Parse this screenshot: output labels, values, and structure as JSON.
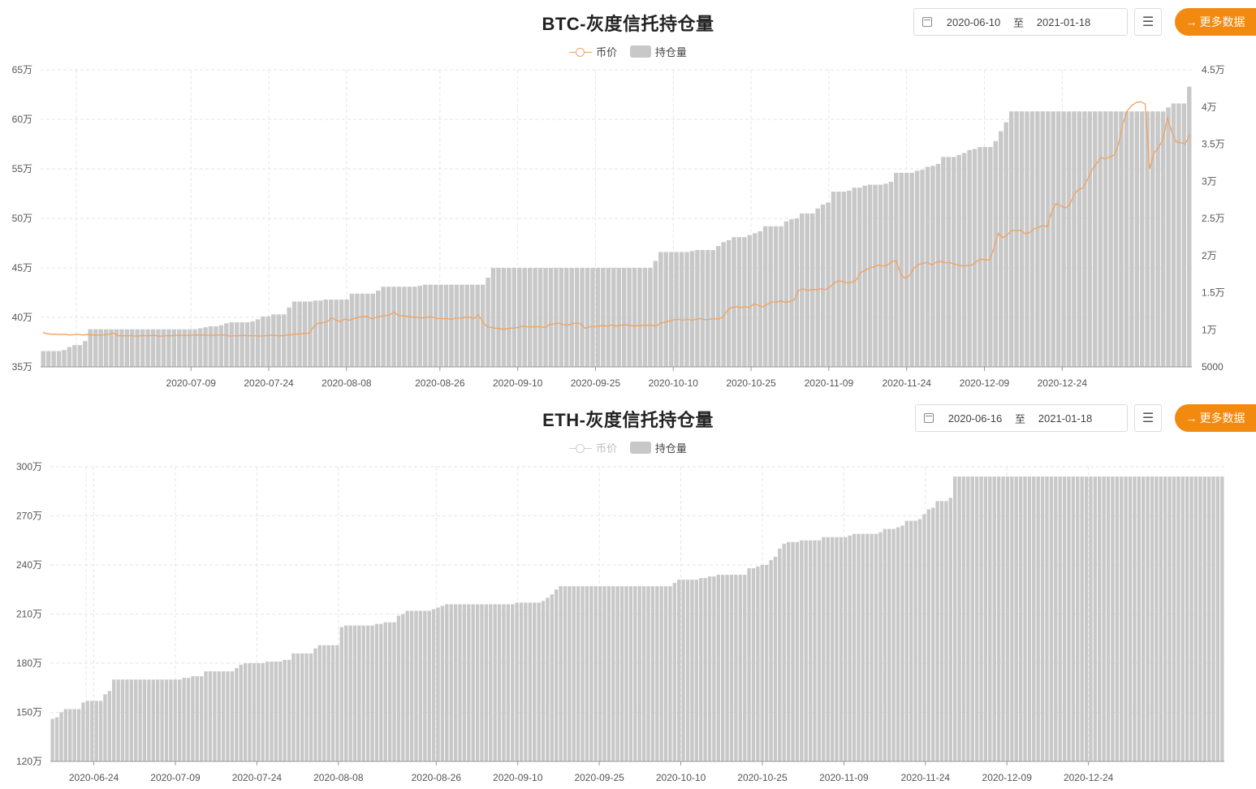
{
  "charts": [
    {
      "title": "BTC-灰度信托持仓量",
      "date_from": "2020-06-10",
      "date_sep": "至",
      "date_to": "2021-01-18",
      "menu_icon": "menu-icon",
      "more_label": "更多数据",
      "legend": [
        {
          "name": "币价",
          "active": true
        },
        {
          "name": "持仓量",
          "active": true
        }
      ]
    },
    {
      "title": "ETH-灰度信托持仓量",
      "date_from": "2020-06-16",
      "date_sep": "至",
      "date_to": "2021-01-18",
      "menu_icon": "menu-icon",
      "more_label": "更多数据",
      "legend": [
        {
          "name": "币价",
          "active": false
        },
        {
          "name": "持仓量",
          "active": true
        }
      ]
    }
  ],
  "colors": {
    "bar": "#c8c8c8",
    "price_line": "#f0a25e",
    "accent": "#f28a0f",
    "grid": "#e6e6e6"
  },
  "chart_data": [
    {
      "type": "bar",
      "x_start": "2020-06-10",
      "x_end": "2021-01-18",
      "xticks": [
        "2020-07-09",
        "2020-07-24",
        "2020-08-08",
        "2020-08-26",
        "2020-09-10",
        "2020-09-25",
        "2020-10-10",
        "2020-10-25",
        "2020-11-09",
        "2020-11-24",
        "2020-12-09",
        "2020-12-24"
      ],
      "y_left": {
        "min": 35,
        "max": 65,
        "step": 5,
        "unit": "万",
        "ticks": [
          "35万",
          "40万",
          "45万",
          "50万",
          "55万",
          "60万",
          "65万"
        ]
      },
      "y_right": {
        "min": 5000,
        "max": 45000,
        "ticks": [
          "5000",
          "1万",
          "1.5万",
          "2万",
          "2.5万",
          "3万",
          "3.5万",
          "4万",
          "4.5万"
        ]
      },
      "grid": true,
      "legend_position": "top-center",
      "series": [
        {
          "name": "持仓量",
          "type": "bar",
          "values": [
            36.6,
            36.6,
            36.6,
            36.6,
            36.7,
            37.0,
            37.2,
            37.2,
            37.6,
            38.8,
            38.8,
            38.8,
            38.8,
            38.8,
            38.8,
            38.8,
            38.8,
            38.8,
            38.8,
            38.8,
            38.8,
            38.8,
            38.8,
            38.8,
            38.8,
            38.8,
            38.8,
            38.8,
            38.8,
            38.8,
            38.9,
            39.0,
            39.1,
            39.1,
            39.2,
            39.4,
            39.5,
            39.5,
            39.5,
            39.5,
            39.6,
            39.8,
            40.1,
            40.1,
            40.3,
            40.3,
            40.3,
            41.0,
            41.6,
            41.6,
            41.6,
            41.6,
            41.7,
            41.7,
            41.8,
            41.8,
            41.8,
            41.8,
            41.8,
            42.4,
            42.4,
            42.4,
            42.4,
            42.4,
            42.7,
            43.1,
            43.1,
            43.1,
            43.1,
            43.1,
            43.1,
            43.1,
            43.2,
            43.3,
            43.3,
            43.3,
            43.3,
            43.3,
            43.3,
            43.3,
            43.3,
            43.3,
            43.3,
            43.3,
            43.3,
            44.0,
            45.0,
            45.0,
            45.0,
            45.0,
            45.0,
            45.0,
            45.0,
            45.0,
            45.0,
            45.0,
            45.0,
            45.0,
            45.0,
            45.0,
            45.0,
            45.0,
            45.0,
            45.0,
            45.0,
            45.0,
            45.0,
            45.0,
            45.0,
            45.0,
            45.0,
            45.0,
            45.0,
            45.0,
            45.0,
            45.0,
            45.0,
            45.7,
            46.6,
            46.6,
            46.6,
            46.6,
            46.6,
            46.6,
            46.7,
            46.8,
            46.8,
            46.8,
            46.8,
            47.2,
            47.6,
            47.8,
            48.1,
            48.1,
            48.1,
            48.3,
            48.5,
            48.7,
            49.2,
            49.2,
            49.2,
            49.2,
            49.7,
            49.9,
            50.0,
            50.5,
            50.5,
            50.5,
            51.0,
            51.4,
            51.6,
            52.7,
            52.7,
            52.7,
            52.8,
            53.1,
            53.1,
            53.3,
            53.4,
            53.4,
            53.4,
            53.5,
            53.7,
            54.6,
            54.6,
            54.6,
            54.6,
            54.8,
            54.9,
            55.2,
            55.3,
            55.5,
            56.2,
            56.2,
            56.2,
            56.4,
            56.6,
            56.9,
            57.0,
            57.2,
            57.2,
            57.2,
            57.8,
            58.8,
            59.7,
            60.8,
            60.8,
            60.8,
            60.8,
            60.8,
            60.8,
            60.8,
            60.8,
            60.8,
            60.8,
            60.8,
            60.8,
            60.8,
            60.8,
            60.8,
            60.8,
            60.8,
            60.8,
            60.8,
            60.8,
            60.8,
            60.8,
            60.8,
            60.8,
            60.8,
            60.8,
            60.8,
            60.8,
            60.8,
            60.8,
            61.2,
            61.6,
            61.6,
            61.6,
            63.3
          ]
        },
        {
          "name": "币价",
          "type": "line",
          "values": [
            9650,
            9450,
            9400,
            9400,
            9350,
            9400,
            9300,
            9350,
            9380,
            9300,
            9350,
            9300,
            9300,
            9250,
            9350,
            9420,
            9550,
            9200,
            9200,
            9200,
            9200,
            9150,
            9200,
            9200,
            9200,
            9250,
            9150,
            9150,
            9200,
            9200,
            9250,
            9250,
            9250,
            9250,
            9300,
            9300,
            9300,
            9250,
            9250,
            9300,
            9300,
            9300,
            9150,
            9200,
            9200,
            9250,
            9200,
            9200,
            9200,
            9150,
            9200,
            9250,
            9250,
            9200,
            9200,
            9300,
            9350,
            9400,
            9450,
            9500,
            9550,
            10500,
            10900,
            10950,
            11100,
            11600,
            11300,
            11100,
            11450,
            11300,
            11500,
            11700,
            11750,
            11800,
            11450,
            11700,
            11800,
            11900,
            12000,
            12400,
            11900,
            11900,
            11800,
            11700,
            11700,
            11600,
            11650,
            11750,
            11650,
            11500,
            11500,
            11500,
            11400,
            11600,
            11550,
            11700,
            11700,
            11500,
            12000,
            11000,
            10400,
            10300,
            10200,
            10100,
            10100,
            10200,
            10250,
            10300,
            10500,
            10400,
            10400,
            10400,
            10400,
            10300,
            10700,
            10800,
            10900,
            10700,
            10600,
            10800,
            10900,
            10800,
            10200,
            10400,
            10450,
            10500,
            10550,
            10500,
            10650,
            10500,
            10600,
            10700,
            10600,
            10500,
            10550,
            10600,
            10600,
            10600,
            10500,
            10900,
            11000,
            11200,
            11350,
            11400,
            11300,
            11400,
            11300,
            11400,
            11500,
            11350,
            11400,
            11500,
            11450,
            11700,
            12600,
            13000,
            13100,
            13000,
            13100,
            13000,
            13500,
            13300,
            13100,
            13400,
            13800,
            13700,
            13900,
            13700,
            13800,
            14000,
            15300,
            15500,
            15300,
            15400,
            15400,
            15500,
            15400,
            15700,
            16300,
            16600,
            16500,
            16300,
            16400,
            16700,
            17700,
            18000,
            18300,
            18500,
            18700,
            18600,
            18700,
            19200,
            19300,
            17500,
            16900,
            17300,
            18300,
            18800,
            18900,
            19100,
            18700,
            19100,
            19200,
            19000,
            19050,
            18850,
            18700,
            18600,
            18650,
            18700,
            19200,
            19500,
            19400,
            19400,
            21000,
            23000,
            22400,
            22800,
            23400,
            23300,
            23400,
            22900,
            23100,
            23600,
            23800,
            24000,
            23900,
            26000,
            27000,
            26700,
            26400,
            26800,
            28200,
            28900,
            29100,
            30200,
            31500,
            32300,
            33200,
            33000,
            33300,
            33500,
            35000,
            37800,
            39500,
            40200,
            40600,
            40700,
            40400,
            31700,
            33800,
            34500,
            35700,
            38500,
            36600,
            35300,
            35200,
            35000,
            36200
          ]
        }
      ]
    },
    {
      "type": "bar",
      "x_start": "2020-06-16",
      "x_end": "2021-01-18",
      "xticks": [
        "2020-06-24",
        "2020-07-09",
        "2020-07-24",
        "2020-08-08",
        "2020-08-26",
        "2020-09-10",
        "2020-09-25",
        "2020-10-10",
        "2020-10-25",
        "2020-11-09",
        "2020-11-24",
        "2020-12-09",
        "2020-12-24"
      ],
      "y_left": {
        "min": 120,
        "max": 300,
        "step": 30,
        "unit": "万",
        "ticks": [
          "120万",
          "150万",
          "180万",
          "210万",
          "240万",
          "270万",
          "300万"
        ]
      },
      "grid": true,
      "legend_position": "top-center",
      "series": [
        {
          "name": "持仓量",
          "type": "bar",
          "values": [
            146,
            147,
            150,
            152,
            152,
            152,
            152,
            156,
            157,
            157,
            157,
            157,
            161,
            163,
            170,
            170,
            170,
            170,
            170,
            170,
            170,
            170,
            170,
            170,
            170,
            170,
            170,
            170,
            170,
            170,
            171,
            171,
            172,
            172,
            172,
            175,
            175,
            175,
            175,
            175,
            175,
            175,
            177,
            179,
            180,
            180,
            180,
            180,
            180,
            181,
            181,
            181,
            181,
            182,
            182,
            186,
            186,
            186,
            186,
            186,
            189,
            191,
            191,
            191,
            191,
            191,
            202,
            203,
            203,
            203,
            203,
            203,
            203,
            203,
            204,
            204,
            205,
            205,
            205,
            209,
            210,
            212,
            212,
            212,
            212,
            212,
            212,
            213,
            214,
            215,
            216,
            216,
            216,
            216,
            216,
            216,
            216,
            216,
            216,
            216,
            216,
            216,
            216,
            216,
            216,
            216,
            217,
            217,
            217,
            217,
            217,
            217,
            218,
            220,
            222,
            225,
            227,
            227,
            227,
            227,
            227,
            227,
            227,
            227,
            227,
            227,
            227,
            227,
            227,
            227,
            227,
            227,
            227,
            227,
            227,
            227,
            227,
            227,
            227,
            227,
            227,
            227,
            229,
            231,
            231,
            231,
            231,
            231,
            232,
            232,
            233,
            233,
            234,
            234,
            234,
            234,
            234,
            234,
            234,
            238,
            238,
            239,
            240,
            240,
            243,
            245,
            250,
            253,
            254,
            254,
            254,
            255,
            255,
            255,
            255,
            255,
            257,
            257,
            257,
            257,
            257,
            257,
            258,
            259,
            259,
            259,
            259,
            259,
            259,
            260,
            262,
            262,
            262,
            263,
            264,
            267,
            267,
            267,
            268,
            271,
            274,
            275,
            279,
            279,
            279,
            281,
            294,
            294,
            294,
            294,
            294,
            294,
            294,
            294,
            294,
            294,
            294,
            294,
            294,
            294,
            294,
            294,
            294,
            294,
            294,
            294,
            294,
            294,
            294,
            294,
            294,
            294,
            294,
            294,
            294,
            294,
            294,
            294,
            294,
            294,
            294,
            294,
            294,
            294,
            294,
            294,
            294,
            294,
            294,
            294,
            294,
            294,
            294,
            294,
            294,
            294,
            294,
            294,
            294,
            294,
            294,
            294,
            294,
            294,
            294,
            294,
            294,
            294
          ]
        }
      ]
    }
  ]
}
